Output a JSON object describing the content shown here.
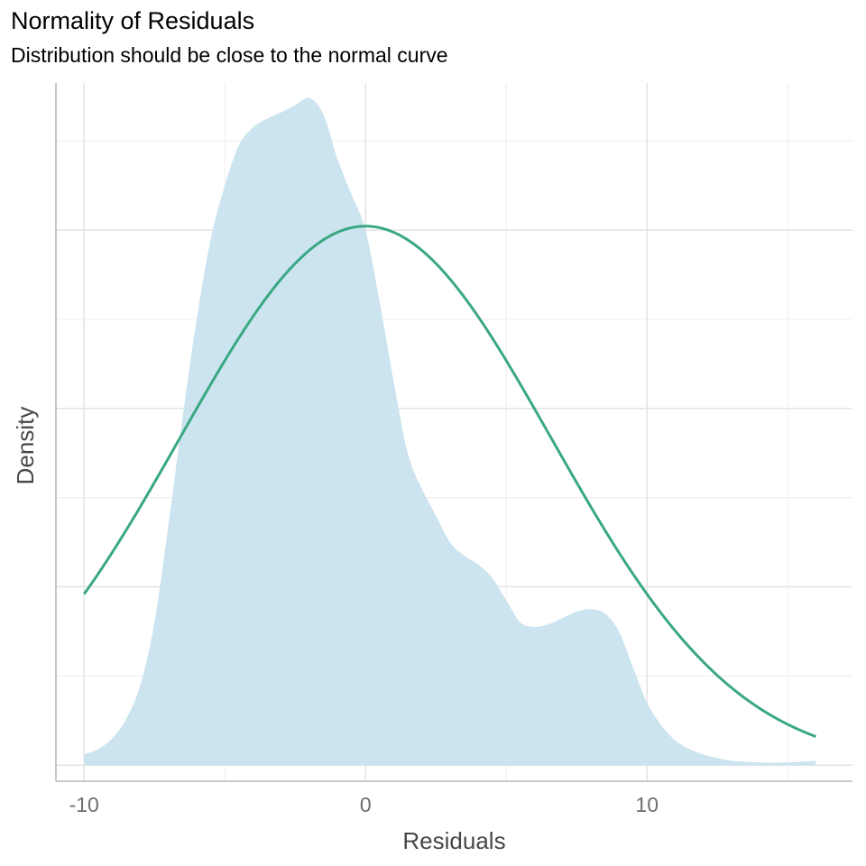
{
  "chart_data": {
    "type": "area",
    "title": "Normality of Residuals",
    "subtitle": "Distribution should be close to the normal curve",
    "xlabel": "Residuals",
    "ylabel": "Density",
    "xlim": [
      -11,
      17.3
    ],
    "ylim": [
      -0.0018,
      0.0765
    ],
    "x_ticks": [
      -10,
      0,
      10
    ],
    "x_minor_ticks": [
      -5,
      5,
      15
    ],
    "y_major_grid": [
      0,
      0.02,
      0.04,
      0.06
    ],
    "y_minor_grid": [
      0.01,
      0.03,
      0.05,
      0.07
    ],
    "show_y_tick_labels": false,
    "grid": true,
    "series": [
      {
        "kind": "density-area",
        "color": "#cce4ef",
        "x": [
          -10,
          -9.5,
          -9,
          -8.5,
          -8,
          -7.5,
          -7,
          -6.5,
          -6,
          -5.5,
          -5,
          -4.5,
          -4,
          -3.5,
          -3,
          -2.5,
          -2,
          -1.5,
          -1,
          -0.5,
          0,
          0.5,
          1,
          1.5,
          2,
          2.5,
          3,
          3.5,
          4,
          4.5,
          5,
          5.5,
          6,
          6.5,
          7,
          7.5,
          8,
          8.5,
          9,
          9.5,
          10,
          10.5,
          11,
          11.5,
          12,
          12.5,
          13,
          14,
          15,
          16
        ],
        "values": [
          0.0012,
          0.0018,
          0.003,
          0.0052,
          0.009,
          0.016,
          0.027,
          0.039,
          0.05,
          0.059,
          0.065,
          0.0695,
          0.0715,
          0.0725,
          0.0732,
          0.074,
          0.0748,
          0.073,
          0.068,
          0.064,
          0.06,
          0.052,
          0.043,
          0.035,
          0.031,
          0.028,
          0.025,
          0.0235,
          0.0225,
          0.021,
          0.0185,
          0.016,
          0.0155,
          0.0158,
          0.0165,
          0.0172,
          0.0175,
          0.017,
          0.015,
          0.011,
          0.007,
          0.0045,
          0.0028,
          0.0018,
          0.0012,
          0.0008,
          0.0005,
          0.0003,
          0.0003,
          0.0005
        ]
      },
      {
        "kind": "normal-curve",
        "color": "#3aa882",
        "mean": 0,
        "sd": 6.6,
        "x_range": [
          -10,
          16
        ]
      }
    ]
  }
}
